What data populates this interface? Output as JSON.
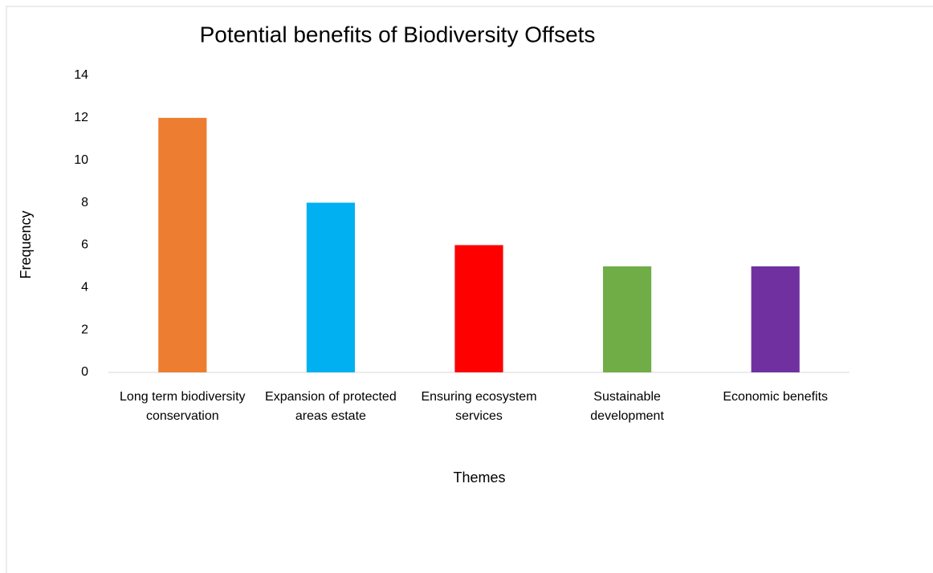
{
  "chart_data": {
    "type": "bar",
    "title": "Potential benefits of Biodiversity Offsets",
    "x_label": "Themes",
    "y_label": "Frequency",
    "categories": [
      "Long term biodiversity conservation",
      "Expansion of protected areas estate",
      "Ensuring ecosystem services",
      "Sustainable development",
      "Economic benefits"
    ],
    "values": [
      12,
      8,
      6,
      5,
      5
    ],
    "colors": [
      "#ed7d31",
      "#00b0f0",
      "#ff0000",
      "#70ad47",
      "#7030a0"
    ],
    "ylim": [
      0,
      14
    ],
    "yticks": [
      0,
      2,
      4,
      6,
      8,
      10,
      12,
      14
    ],
    "grid": false
  }
}
